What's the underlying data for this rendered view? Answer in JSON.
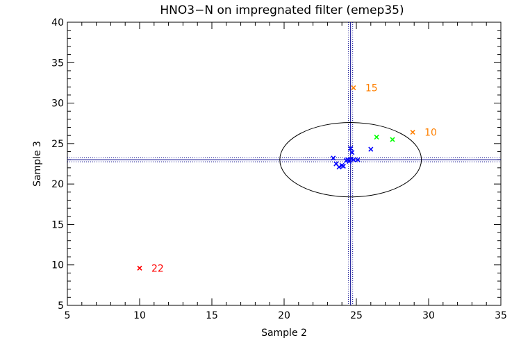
{
  "chart_data": {
    "type": "scatter",
    "title": "HNO3−N on impregnated filter (emep35)",
    "xlabel": "Sample 2",
    "ylabel": "Sample 3",
    "xlim": [
      5,
      35
    ],
    "ylim": [
      5,
      40
    ],
    "xticks": [
      "5",
      "10",
      "15",
      "20",
      "25",
      "30",
      "35"
    ],
    "yticks": [
      "5",
      "10",
      "15",
      "20",
      "25",
      "30",
      "35",
      "40"
    ],
    "reference": {
      "x_median": 24.6,
      "y_median": 23.0,
      "ellipse": {
        "cx": 24.6,
        "cy": 23.0,
        "rx": 4.9,
        "ry": 4.6
      }
    },
    "colors": {
      "axes": "#000000",
      "median_lines": "#00008b",
      "inside": "#0000ff",
      "near": "#00ff00",
      "outlier": "#ff8000",
      "extreme": "#ff0000"
    },
    "points": [
      {
        "x": 23.4,
        "y": 23.2,
        "group": "inside"
      },
      {
        "x": 23.6,
        "y": 22.5,
        "group": "inside"
      },
      {
        "x": 23.8,
        "y": 22.1,
        "group": "inside"
      },
      {
        "x": 24.0,
        "y": 22.3,
        "group": "inside"
      },
      {
        "x": 24.1,
        "y": 22.2,
        "group": "inside"
      },
      {
        "x": 24.3,
        "y": 22.9,
        "group": "inside"
      },
      {
        "x": 24.4,
        "y": 23.0,
        "group": "inside"
      },
      {
        "x": 24.5,
        "y": 22.8,
        "group": "inside"
      },
      {
        "x": 24.6,
        "y": 23.1,
        "group": "inside"
      },
      {
        "x": 24.6,
        "y": 24.4,
        "group": "inside"
      },
      {
        "x": 24.7,
        "y": 23.9,
        "group": "inside"
      },
      {
        "x": 24.8,
        "y": 23.0,
        "group": "inside"
      },
      {
        "x": 25.1,
        "y": 23.0,
        "group": "inside"
      },
      {
        "x": 26.0,
        "y": 24.3,
        "group": "inside"
      },
      {
        "x": 26.4,
        "y": 25.8,
        "group": "near"
      },
      {
        "x": 27.5,
        "y": 25.5,
        "group": "near"
      },
      {
        "x": 24.8,
        "y": 31.9,
        "group": "outlier",
        "label": "15"
      },
      {
        "x": 28.9,
        "y": 26.4,
        "group": "outlier",
        "label": "10"
      },
      {
        "x": 10.0,
        "y": 9.6,
        "group": "extreme",
        "label": "22"
      }
    ]
  }
}
